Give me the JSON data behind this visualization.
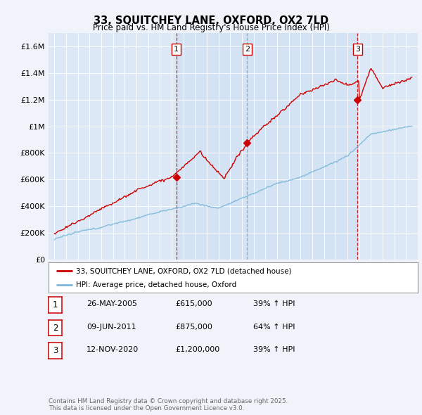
{
  "title": "33, SQUITCHEY LANE, OXFORD, OX2 7LD",
  "subtitle": "Price paid vs. HM Land Registry's House Price Index (HPI)",
  "background_color": "#f0f4fa",
  "plot_bg_color": "#dce8f5",
  "ylim": [
    0,
    1700000
  ],
  "yticks": [
    0,
    200000,
    400000,
    600000,
    800000,
    1000000,
    1200000,
    1400000,
    1600000
  ],
  "ytick_labels": [
    "£0",
    "£200K",
    "£400K",
    "£600K",
    "£800K",
    "£1M",
    "£1.2M",
    "£1.4M",
    "£1.6M"
  ],
  "sale_years_numeric": [
    2005.4,
    2011.44,
    2020.87
  ],
  "sale_prices": [
    615000,
    875000,
    1200000
  ],
  "sale_labels": [
    "1",
    "2",
    "3"
  ],
  "sale_vline_styles": [
    "red_dash",
    "blue_dash",
    "red_dash"
  ],
  "legend_entries": [
    "33, SQUITCHEY LANE, OXFORD, OX2 7LD (detached house)",
    "HPI: Average price, detached house, Oxford"
  ],
  "table_rows": [
    [
      "1",
      "26-MAY-2005",
      "£615,000",
      "39% ↑ HPI"
    ],
    [
      "2",
      "09-JUN-2011",
      "£875,000",
      "64% ↑ HPI"
    ],
    [
      "3",
      "12-NOV-2020",
      "£1,200,000",
      "39% ↑ HPI"
    ]
  ],
  "footer": "Contains HM Land Registry data © Crown copyright and database right 2025.\nThis data is licensed under the Open Government Licence v3.0.",
  "red_line_color": "#cc0000",
  "blue_line_color": "#7ab8d9"
}
